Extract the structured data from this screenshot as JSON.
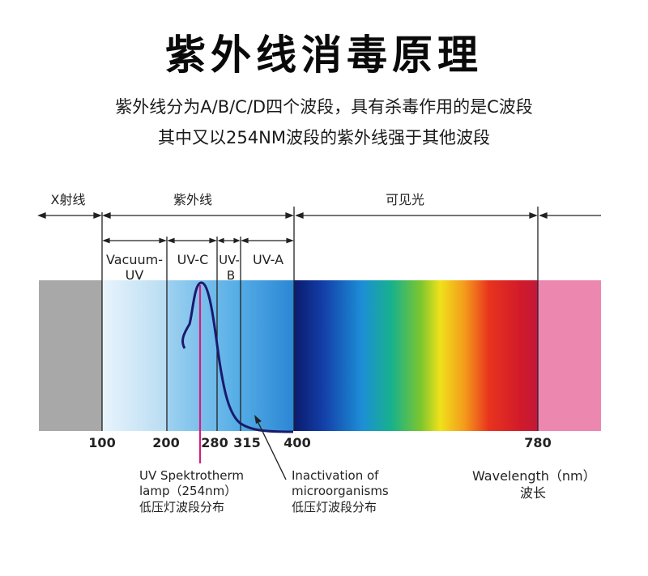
{
  "title": "紫外线消毒原理",
  "subtitle_lines": [
    "紫外线分为A/B/C/D四个波段，具有杀毒作用的是C波段",
    "其中又以254NM波段的紫外线强于其他波段"
  ],
  "regions": {
    "xray": "X射线",
    "uv": "紫外线",
    "visible": "可见光"
  },
  "bands": {
    "vacuum_uv": [
      "Vacuum-",
      "UV"
    ],
    "uv_c": "UV-C",
    "uv_b": [
      "UV-",
      "B"
    ],
    "uv_a": "UV-A"
  },
  "axis_ticks": [
    "100",
    "200",
    "280",
    "315",
    "400",
    "780"
  ],
  "annotations": {
    "lamp": [
      "UV Spektrotherm",
      "lamp（254nm）",
      "低压灯波段分布"
    ],
    "inactivation": [
      "Inactivation  of",
      "microorganisms",
      "低压灯波段分布"
    ],
    "wavelength": [
      "Wavelength（nm）",
      "波长"
    ]
  },
  "colors": {
    "xray_band": "#a8a8a8",
    "visible_pink": "#ec87b0",
    "lamp_line": "#d81b7c",
    "curve": "#1a1a6e"
  }
}
